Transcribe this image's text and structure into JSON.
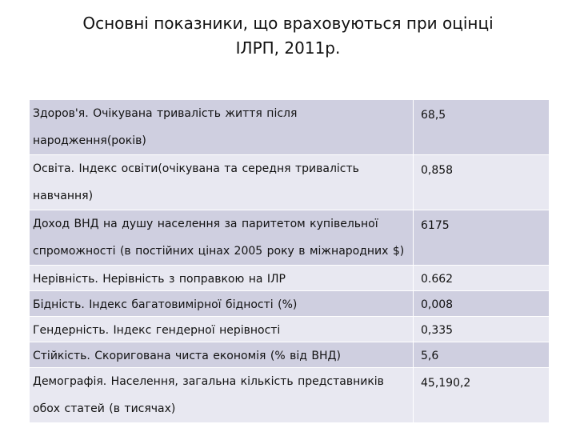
{
  "title": {
    "line1": "Основні показники, що враховуються при оцінці",
    "line2": "ІЛРП, 2011р."
  },
  "rows": [
    {
      "label": "Здоров'я. Очікувана тривалість життя після народження(років)",
      "value": "68,5"
    },
    {
      "label": "Освіта. Індекс освіти(очікувана та середня тривалість навчання)",
      "value": "0,858"
    },
    {
      "label": "Доход  ВНД на душу населення за паритетом купівельної спроможності (в постійних цінах 2005 року в міжнародних $)",
      "value": "6175"
    },
    {
      "label": "Нерівність.  Нерівність з поправкою на ІЛР",
      "value": "0.662"
    },
    {
      "label": "Бідність.  Індекс багатовимірної бідності (%)",
      "value": "0,008"
    },
    {
      "label": "Гендерність. Індекс гендерної нерівності",
      "value": "0,335"
    },
    {
      "label": "Стійкість.  Скоригована чиста економія (% від ВНД)",
      "value": "5,6"
    },
    {
      "label": "Демографія.  Населення, загальна кількість представників обох статей (в тисячах)",
      "value": "45,190,2"
    }
  ]
}
